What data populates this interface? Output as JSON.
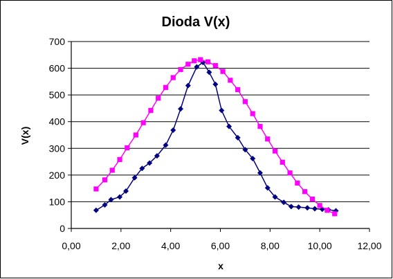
{
  "chart_data": {
    "type": "line",
    "title": "Dioda V(x)",
    "xlabel": "x",
    "ylabel": "V(x)",
    "xlim": [
      0,
      12
    ],
    "ylim": [
      0,
      700
    ],
    "x_ticks": [
      "0,00",
      "2,00",
      "4,00",
      "6,00",
      "8,00",
      "10,00",
      "12,00"
    ],
    "y_ticks": [
      "0",
      "100",
      "200",
      "300",
      "400",
      "500",
      "600",
      "700"
    ],
    "grid": "horizontal",
    "legend": "none",
    "series": [
      {
        "color": "#000080",
        "marker": "diamond",
        "points": [
          [
            1.0,
            68
          ],
          [
            1.35,
            88
          ],
          [
            1.6,
            108
          ],
          [
            1.95,
            118
          ],
          [
            2.2,
            140
          ],
          [
            2.55,
            190
          ],
          [
            2.85,
            225
          ],
          [
            3.15,
            245
          ],
          [
            3.45,
            272
          ],
          [
            3.8,
            312
          ],
          [
            4.1,
            368
          ],
          [
            4.4,
            448
          ],
          [
            4.7,
            535
          ],
          [
            5.05,
            605
          ],
          [
            5.3,
            622
          ],
          [
            5.55,
            585
          ],
          [
            5.8,
            540
          ],
          [
            6.05,
            442
          ],
          [
            6.35,
            382
          ],
          [
            6.7,
            340
          ],
          [
            7.0,
            295
          ],
          [
            7.3,
            262
          ],
          [
            7.6,
            208
          ],
          [
            7.9,
            152
          ],
          [
            8.2,
            118
          ],
          [
            8.55,
            98
          ],
          [
            8.85,
            82
          ],
          [
            9.15,
            80
          ],
          [
            9.5,
            77
          ],
          [
            9.8,
            74
          ],
          [
            10.1,
            72
          ],
          [
            10.35,
            70
          ],
          [
            10.65,
            66
          ]
        ]
      },
      {
        "color": "#FF00FF",
        "marker": "square",
        "points": [
          [
            1.0,
            148
          ],
          [
            1.35,
            182
          ],
          [
            1.65,
            218
          ],
          [
            1.95,
            258
          ],
          [
            2.25,
            302
          ],
          [
            2.6,
            350
          ],
          [
            2.9,
            396
          ],
          [
            3.2,
            442
          ],
          [
            3.5,
            488
          ],
          [
            3.8,
            528
          ],
          [
            4.1,
            565
          ],
          [
            4.4,
            595
          ],
          [
            4.7,
            615
          ],
          [
            4.95,
            628
          ],
          [
            5.2,
            632
          ],
          [
            5.5,
            624
          ],
          [
            5.8,
            610
          ],
          [
            6.1,
            588
          ],
          [
            6.4,
            555
          ],
          [
            6.7,
            520
          ],
          [
            7.0,
            475
          ],
          [
            7.3,
            430
          ],
          [
            7.6,
            382
          ],
          [
            7.9,
            335
          ],
          [
            8.2,
            290
          ],
          [
            8.5,
            248
          ],
          [
            8.8,
            208
          ],
          [
            9.1,
            170
          ],
          [
            9.4,
            138
          ],
          [
            9.7,
            110
          ],
          [
            10.0,
            86
          ],
          [
            10.3,
            68
          ],
          [
            10.6,
            55
          ]
        ]
      }
    ]
  }
}
